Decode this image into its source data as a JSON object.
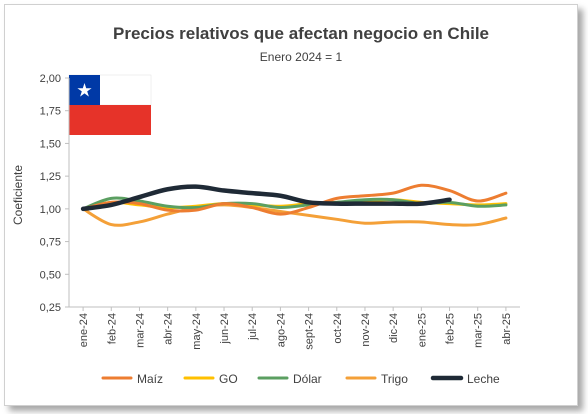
{
  "chart_data": {
    "type": "line",
    "title": "Precios relativos que afectan negocio en Chile",
    "subtitle": "Enero 2024 = 1",
    "ylabel": "Coeficiente",
    "xlabel": "",
    "ylim": [
      0.25,
      2.0
    ],
    "yticks": [
      "0,25",
      "0,50",
      "0,75",
      "1,00",
      "1,25",
      "1,50",
      "1,75",
      "2,00"
    ],
    "categories": [
      "ene-24",
      "feb-24",
      "mar-24",
      "abr-24",
      "may-24",
      "jun-24",
      "jul-24",
      "ago-24",
      "sept-24",
      "oct-24",
      "nov-24",
      "dic-24",
      "ene-25",
      "feb-25",
      "mar-25",
      "abr-25"
    ],
    "legend_position": "bottom",
    "grid": false,
    "series": [
      {
        "name": "Maíz",
        "color": "#ED7D31",
        "values": [
          1.0,
          1.05,
          1.04,
          0.99,
          0.99,
          1.04,
          1.01,
          0.96,
          1.01,
          1.08,
          1.1,
          1.12,
          1.18,
          1.14,
          1.06,
          1.12
        ]
      },
      {
        "name": "GO",
        "color": "#FFC000",
        "values": [
          1.0,
          1.05,
          1.03,
          1.01,
          1.02,
          1.04,
          1.03,
          1.02,
          1.04,
          1.05,
          1.06,
          1.07,
          1.05,
          1.04,
          1.03,
          1.04
        ]
      },
      {
        "name": "Dólar",
        "color": "#5B9F61",
        "values": [
          1.0,
          1.08,
          1.06,
          1.02,
          1.01,
          1.04,
          1.04,
          1.01,
          1.03,
          1.05,
          1.07,
          1.07,
          1.04,
          1.05,
          1.02,
          1.03
        ]
      },
      {
        "name": "Trigo",
        "color": "#F4A038",
        "values": [
          1.0,
          0.88,
          0.9,
          0.96,
          1.01,
          1.03,
          1.01,
          0.98,
          0.95,
          0.92,
          0.89,
          0.9,
          0.9,
          0.88,
          0.88,
          0.93
        ]
      },
      {
        "name": "Leche",
        "color": "#1F2A36",
        "values": [
          1.0,
          1.03,
          1.09,
          1.15,
          1.17,
          1.14,
          1.12,
          1.1,
          1.05,
          1.04,
          1.04,
          1.04,
          1.04,
          1.07,
          null,
          null
        ]
      }
    ]
  },
  "flag": {
    "name": "chile-flag-icon",
    "blue": "#0039A6",
    "red": "#E63329",
    "white": "#FFFFFF"
  }
}
